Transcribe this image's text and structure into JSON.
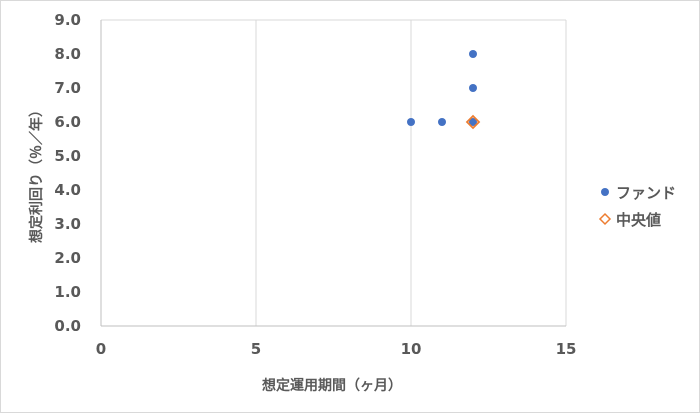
{
  "chart_data": {
    "type": "scatter",
    "xlabel": "想定運用期間（ヶ月）",
    "ylabel": "想定利回り（％／年）",
    "xlim": [
      0,
      15
    ],
    "ylim": [
      0,
      9
    ],
    "x_ticks": [
      0,
      5,
      10,
      15
    ],
    "y_ticks": [
      "0.0",
      "1.0",
      "2.0",
      "3.0",
      "4.0",
      "5.0",
      "6.0",
      "7.0",
      "8.0",
      "9.0"
    ],
    "grid": "vertical major gridlines",
    "legend_position": "right",
    "series": [
      {
        "name": "ファンド",
        "marker": "circle",
        "color": "#4472c4",
        "points": [
          {
            "x": 10,
            "y": 6.0
          },
          {
            "x": 11,
            "y": 6.0
          },
          {
            "x": 12,
            "y": 6.0
          },
          {
            "x": 12,
            "y": 7.0
          },
          {
            "x": 12,
            "y": 8.0
          }
        ]
      },
      {
        "name": "中央値",
        "marker": "diamond",
        "color": "#ed7d31",
        "points": [
          {
            "x": 12,
            "y": 6.0
          }
        ]
      }
    ]
  }
}
